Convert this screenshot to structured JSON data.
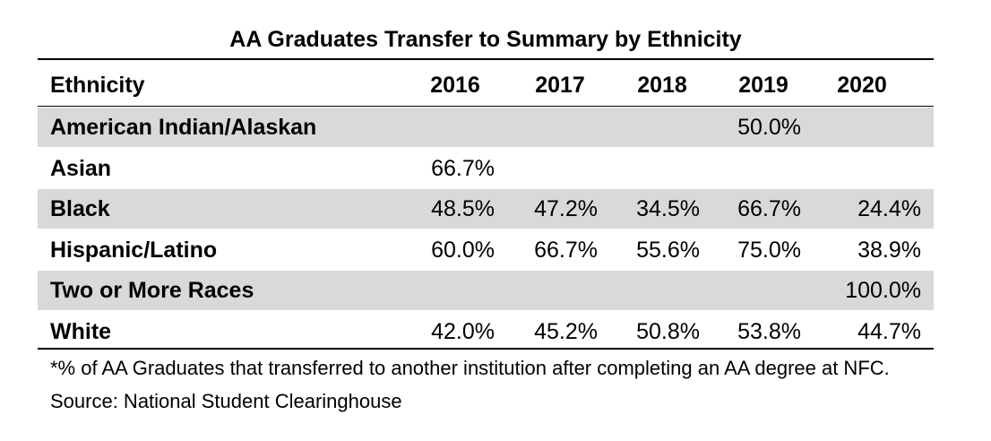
{
  "header": {
    "title": "AA Graduates Transfer to Summary by Ethnicity"
  },
  "table": {
    "columns": [
      "Ethnicity",
      "2016",
      "2017",
      "2018",
      "2019",
      "2020"
    ],
    "rows": [
      [
        "American Indian/Alaskan",
        null,
        null,
        null,
        "50.0%",
        null
      ],
      [
        "Asian",
        "66.7%",
        null,
        null,
        null,
        null
      ],
      [
        "Black",
        "48.5%",
        "47.2%",
        "34.5%",
        "66.7%",
        "24.4%"
      ],
      [
        "Hispanic/Latino",
        "60.0%",
        "66.7%",
        "55.6%",
        "75.0%",
        "38.9%"
      ],
      [
        "Two or More Races",
        null,
        null,
        null,
        null,
        "100.0%"
      ],
      [
        "White",
        "42.0%",
        "45.2%",
        "50.8%",
        "53.8%",
        "44.7%"
      ]
    ]
  },
  "footnote": "*% of AA Graduates that transferred to another institution after completing an AA degree at NFC. Source: National Student Clearinghouse"
}
